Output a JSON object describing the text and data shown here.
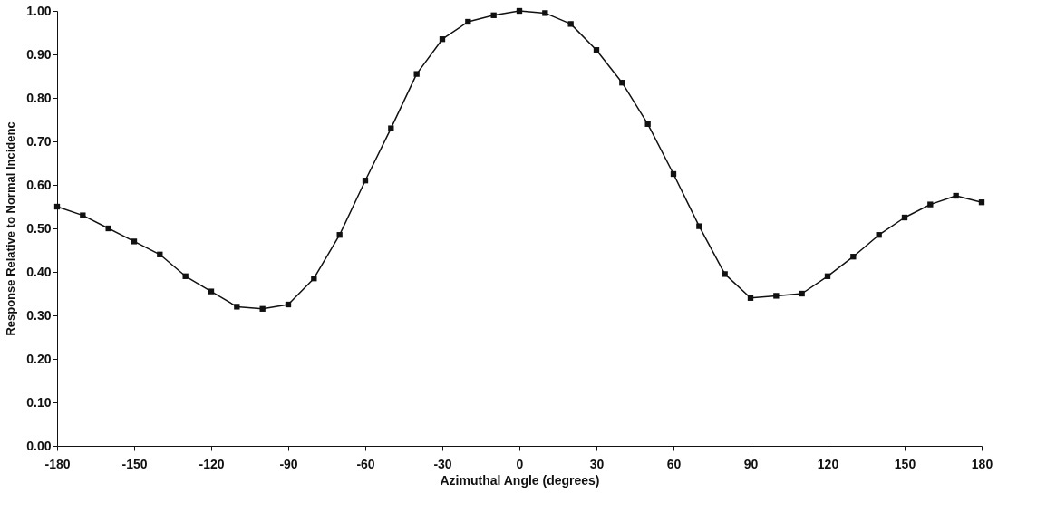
{
  "chart_data": {
    "type": "line",
    "xlabel": "Azimuthal Angle (degrees)",
    "ylabel": "Response Relative to Normal Incidenc",
    "x": [
      -180,
      -170,
      -160,
      -150,
      -140,
      -130,
      -120,
      -110,
      -100,
      -90,
      -80,
      -70,
      -60,
      -50,
      -40,
      -30,
      -20,
      -10,
      0,
      10,
      20,
      30,
      40,
      50,
      60,
      70,
      80,
      90,
      100,
      110,
      120,
      130,
      140,
      150,
      160,
      170,
      180
    ],
    "series": [
      {
        "color": "#111111",
        "values": [
          0.55,
          0.53,
          0.5,
          0.47,
          0.44,
          0.39,
          0.355,
          0.32,
          0.315,
          0.325,
          0.385,
          0.485,
          0.61,
          0.73,
          0.855,
          0.935,
          0.975,
          0.99,
          1.0,
          0.995,
          0.97,
          0.91,
          0.835,
          0.74,
          0.625,
          0.505,
          0.395,
          0.34,
          0.345,
          0.35,
          0.39,
          0.435,
          0.485,
          0.525,
          0.555,
          0.575,
          0.56
        ]
      }
    ],
    "xlim": [
      -180,
      180
    ],
    "xticks": [
      -180,
      -150,
      -120,
      -90,
      -60,
      -30,
      0,
      30,
      60,
      90,
      120,
      150,
      180
    ],
    "ylim": [
      0,
      1
    ],
    "yticks": [
      {
        "value": 0,
        "label": "0.00"
      },
      {
        "value": 0.1,
        "label": "0.10"
      },
      {
        "value": 0.2,
        "label": "0.20"
      },
      {
        "value": 0.3,
        "label": "0.30"
      },
      {
        "value": 0.4,
        "label": "0.40"
      },
      {
        "value": 0.5,
        "label": "0.50"
      },
      {
        "value": 0.6,
        "label": "0.60"
      },
      {
        "value": 0.7,
        "label": "0.70"
      },
      {
        "value": 0.8,
        "label": "0.80"
      },
      {
        "value": 0.9,
        "label": "0.90"
      },
      {
        "value": 1,
        "label": "1.00"
      }
    ],
    "grid": false,
    "marker": "square",
    "line_style": "solid"
  }
}
